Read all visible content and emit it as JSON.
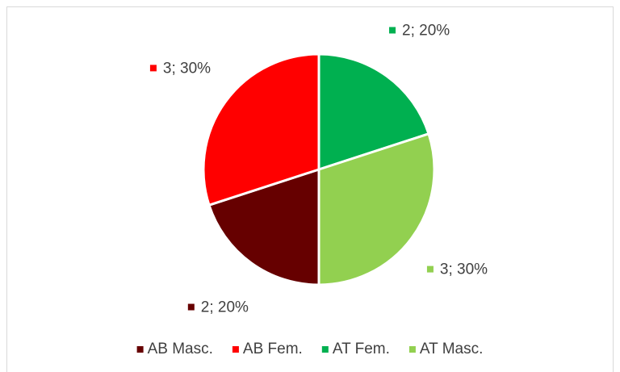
{
  "chart_data": {
    "type": "pie",
    "categories": [
      "AB Masc.",
      "AB Fem.",
      "AT Fem.",
      "AT Masc."
    ],
    "values": [
      2,
      3,
      2,
      3
    ],
    "value_labels": [
      "2; 20%",
      "3; 30%",
      "2; 20%",
      "3; 30%"
    ],
    "colors": [
      "#660000",
      "#ff0000",
      "#00b050",
      "#92d050"
    ],
    "start_angle": 180,
    "legend": "bottom"
  }
}
